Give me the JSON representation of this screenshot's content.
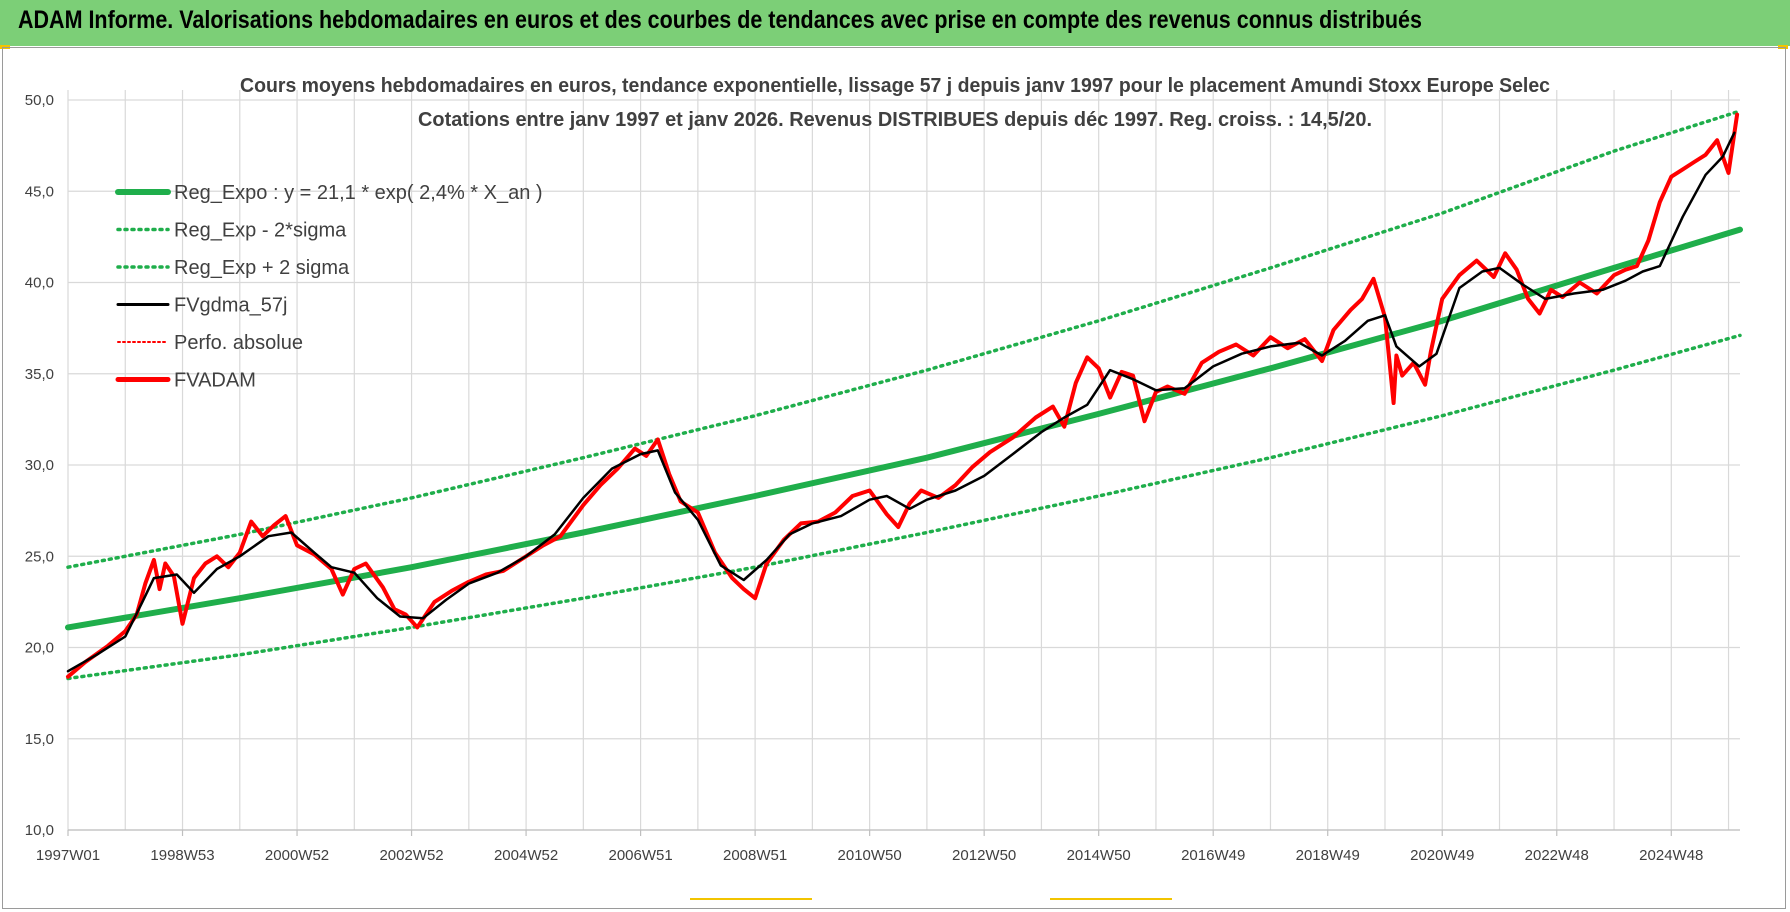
{
  "header": {
    "title": "ADAM Informe. Valorisations hebdomadaires en euros et des courbes de tendances avec prise en compte des revenus connus distribués"
  },
  "colors": {
    "header_bg": "#7ccf77",
    "trend": "#1fae4b",
    "price": "#ff0000",
    "smooth": "#000000",
    "grid": "#d9d9d9",
    "accent": "#f2c400"
  },
  "chart_data": {
    "type": "line",
    "title_line1": "Cours moyens hebdomadaires en euros, tendance exponentielle, lissage 57 j depuis janv 1997 pour le placement Amundi Stoxx Europe Selec",
    "title_line2": "Cotations entre janv 1997 et janv 2026. Revenus DISTRIBUES depuis déc 1997.  Reg. croiss. : 14,5/20.",
    "xlim": [
      1997.0,
      2026.2
    ],
    "ylim": [
      10,
      50
    ],
    "yticks": [
      10,
      15,
      20,
      25,
      30,
      35,
      40,
      45,
      50
    ],
    "ytick_labels": [
      "10,0",
      "15,0",
      "20,0",
      "25,0",
      "30,0",
      "35,0",
      "40,0",
      "45,0",
      "50,0"
    ],
    "xticks": [
      1997.0,
      1999.0,
      2001.0,
      2003.0,
      2005.0,
      2007.0,
      2009.0,
      2011.0,
      2013.0,
      2015.0,
      2017.0,
      2019.0,
      2021.0,
      2023.0,
      2025.0
    ],
    "xtick_labels": [
      "1997W01",
      "1998W53",
      "2000W52",
      "2002W52",
      "2004W52",
      "2006W51",
      "2008W51",
      "2010W50",
      "2012W50",
      "2014W50",
      "2016W49",
      "2018W49",
      "2020W49",
      "2022W48",
      "2024W48"
    ],
    "grid": true,
    "legend_position": "top-left",
    "legend": [
      {
        "label": "Reg_Expo : y = 21,1 * exp( 2,4% *  X_an )",
        "style": "solid-thick",
        "color": "#1fae4b"
      },
      {
        "label": "Reg_Exp - 2*sigma",
        "style": "dotted",
        "color": "#1fae4b"
      },
      {
        "label": "Reg_Exp + 2 sigma",
        "style": "dotted",
        "color": "#1fae4b"
      },
      {
        "label": "FVgdma_57j",
        "style": "solid",
        "color": "#000000"
      },
      {
        "label": "Perfo. absolue",
        "style": "dotted",
        "color": "#ff0000"
      },
      {
        "label": "FVADAM",
        "style": "solid-thick",
        "color": "#ff0000"
      }
    ],
    "series": [
      {
        "name": "Reg_Expo : y = 21,1 * exp( 2,4% *  X_an )",
        "x": [
          1997.0,
          2000.0,
          2003.0,
          2006.0,
          2009.0,
          2012.0,
          2015.0,
          2018.0,
          2021.0,
          2024.0,
          2026.2
        ],
        "y": [
          21.1,
          22.7,
          24.4,
          26.3,
          28.3,
          30.4,
          32.8,
          35.3,
          37.9,
          40.8,
          42.9
        ]
      },
      {
        "name": "Reg_Exp - 2*sigma",
        "x": [
          1997.0,
          2000.0,
          2003.0,
          2006.0,
          2009.0,
          2012.0,
          2015.0,
          2018.0,
          2021.0,
          2024.0,
          2026.2
        ],
        "y": [
          18.3,
          19.6,
          21.1,
          22.7,
          24.4,
          26.3,
          28.3,
          30.4,
          32.7,
          35.2,
          37.1
        ]
      },
      {
        "name": "Reg_Exp + 2 sigma",
        "x": [
          1997.0,
          2000.0,
          2003.0,
          2006.0,
          2009.0,
          2012.0,
          2015.0,
          2018.0,
          2021.0,
          2024.0,
          2026.2
        ],
        "y": [
          24.4,
          26.2,
          28.2,
          30.4,
          32.7,
          35.2,
          37.9,
          40.8,
          43.8,
          47.2,
          49.4
        ]
      },
      {
        "name": "FVgdma_57j",
        "x": [
          1997.0,
          1997.5,
          1998.0,
          1998.3,
          1998.5,
          1998.9,
          1999.2,
          1999.6,
          2000.0,
          2000.5,
          2000.9,
          2001.3,
          2001.6,
          2002.0,
          2002.4,
          2002.8,
          2003.2,
          2003.6,
          2004.0,
          2004.5,
          2005.0,
          2005.5,
          2006.0,
          2006.5,
          2007.0,
          2007.3,
          2007.6,
          2008.0,
          2008.4,
          2008.8,
          2009.2,
          2009.6,
          2010.0,
          2010.5,
          2011.0,
          2011.3,
          2011.7,
          2012.0,
          2012.5,
          2013.0,
          2013.5,
          2014.0,
          2014.4,
          2014.8,
          2015.2,
          2015.6,
          2016.0,
          2016.5,
          2017.0,
          2017.5,
          2018.0,
          2018.5,
          2018.9,
          2019.3,
          2019.7,
          2020.0,
          2020.2,
          2020.6,
          2020.9,
          2021.3,
          2021.7,
          2022.0,
          2022.4,
          2022.8,
          2023.3,
          2023.8,
          2024.2,
          2024.5,
          2024.8,
          2025.2,
          2025.6,
          2025.9,
          2026.1
        ],
        "y": [
          18.7,
          19.6,
          20.6,
          22.5,
          23.8,
          24.0,
          23.0,
          24.3,
          25.0,
          26.1,
          26.3,
          25.2,
          24.4,
          24.1,
          22.7,
          21.7,
          21.6,
          22.6,
          23.5,
          24.1,
          25.0,
          26.2,
          28.2,
          29.8,
          30.6,
          30.8,
          28.5,
          27.0,
          24.5,
          23.7,
          24.8,
          26.2,
          26.8,
          27.2,
          28.1,
          28.3,
          27.6,
          28.1,
          28.6,
          29.4,
          30.6,
          31.8,
          32.6,
          33.3,
          35.2,
          34.7,
          34.1,
          34.2,
          35.4,
          36.1,
          36.5,
          36.7,
          36.0,
          36.8,
          37.9,
          38.2,
          36.5,
          35.4,
          36.1,
          39.7,
          40.6,
          40.8,
          39.9,
          39.1,
          39.4,
          39.6,
          40.1,
          40.6,
          40.9,
          43.6,
          45.9,
          46.9,
          48.2
        ]
      },
      {
        "name": "FVADAM",
        "x": [
          1997.0,
          1997.3,
          1997.7,
          1998.0,
          1998.2,
          1998.35,
          1998.5,
          1998.6,
          1998.7,
          1998.85,
          1999.0,
          1999.2,
          1999.4,
          1999.6,
          1999.8,
          2000.0,
          2000.2,
          2000.4,
          2000.6,
          2000.8,
          2001.0,
          2001.3,
          2001.6,
          2001.8,
          2002.0,
          2002.2,
          2002.5,
          2002.7,
          2002.9,
          2003.1,
          2003.4,
          2003.7,
          2004.0,
          2004.3,
          2004.6,
          2005.0,
          2005.3,
          2005.6,
          2006.0,
          2006.3,
          2006.6,
          2006.9,
          2007.1,
          2007.3,
          2007.5,
          2007.7,
          2008.0,
          2008.3,
          2008.6,
          2008.8,
          2009.0,
          2009.2,
          2009.5,
          2009.8,
          2010.1,
          2010.4,
          2010.7,
          2011.0,
          2011.3,
          2011.5,
          2011.7,
          2011.9,
          2012.2,
          2012.5,
          2012.8,
          2013.1,
          2013.5,
          2013.9,
          2014.2,
          2014.4,
          2014.6,
          2014.8,
          2015.0,
          2015.2,
          2015.4,
          2015.6,
          2015.8,
          2016.0,
          2016.2,
          2016.5,
          2016.8,
          2017.1,
          2017.4,
          2017.7,
          2018.0,
          2018.3,
          2018.6,
          2018.9,
          2019.1,
          2019.4,
          2019.6,
          2019.8,
          2020.0,
          2020.15,
          2020.2,
          2020.3,
          2020.5,
          2020.7,
          2020.8,
          2021.0,
          2021.3,
          2021.6,
          2021.9,
          2022.1,
          2022.3,
          2022.5,
          2022.7,
          2022.9,
          2023.1,
          2023.4,
          2023.7,
          2024.0,
          2024.2,
          2024.4,
          2024.6,
          2024.8,
          2025.0,
          2025.2,
          2025.4,
          2025.6,
          2025.8,
          2026.0,
          2026.15
        ],
        "y": [
          18.4,
          19.2,
          20.1,
          20.9,
          21.8,
          23.5,
          24.8,
          23.2,
          24.6,
          23.9,
          21.3,
          23.8,
          24.6,
          25.0,
          24.4,
          25.2,
          26.9,
          26.1,
          26.7,
          27.2,
          25.6,
          25.1,
          24.3,
          22.9,
          24.3,
          24.6,
          23.3,
          22.1,
          21.8,
          21.1,
          22.5,
          23.1,
          23.6,
          24.0,
          24.2,
          25.0,
          25.6,
          26.1,
          27.8,
          28.9,
          29.8,
          30.9,
          30.5,
          31.4,
          29.5,
          28.0,
          27.4,
          25.2,
          23.8,
          23.2,
          22.7,
          24.6,
          25.9,
          26.8,
          26.9,
          27.4,
          28.3,
          28.6,
          27.3,
          26.6,
          27.9,
          28.6,
          28.2,
          28.9,
          29.9,
          30.7,
          31.5,
          32.6,
          33.2,
          32.1,
          34.5,
          35.9,
          35.3,
          33.7,
          35.1,
          34.9,
          32.4,
          34.0,
          34.3,
          33.9,
          35.6,
          36.2,
          36.6,
          36.0,
          37.0,
          36.4,
          36.9,
          35.7,
          37.4,
          38.5,
          39.1,
          40.2,
          38.1,
          33.4,
          36.0,
          34.9,
          35.6,
          34.4,
          36.2,
          39.1,
          40.4,
          41.2,
          40.3,
          41.6,
          40.7,
          39.1,
          38.3,
          39.6,
          39.2,
          40.0,
          39.4,
          40.4,
          40.7,
          40.9,
          42.3,
          44.4,
          45.8,
          46.2,
          46.6,
          47.0,
          47.8,
          46.0,
          49.2
        ]
      }
    ]
  }
}
